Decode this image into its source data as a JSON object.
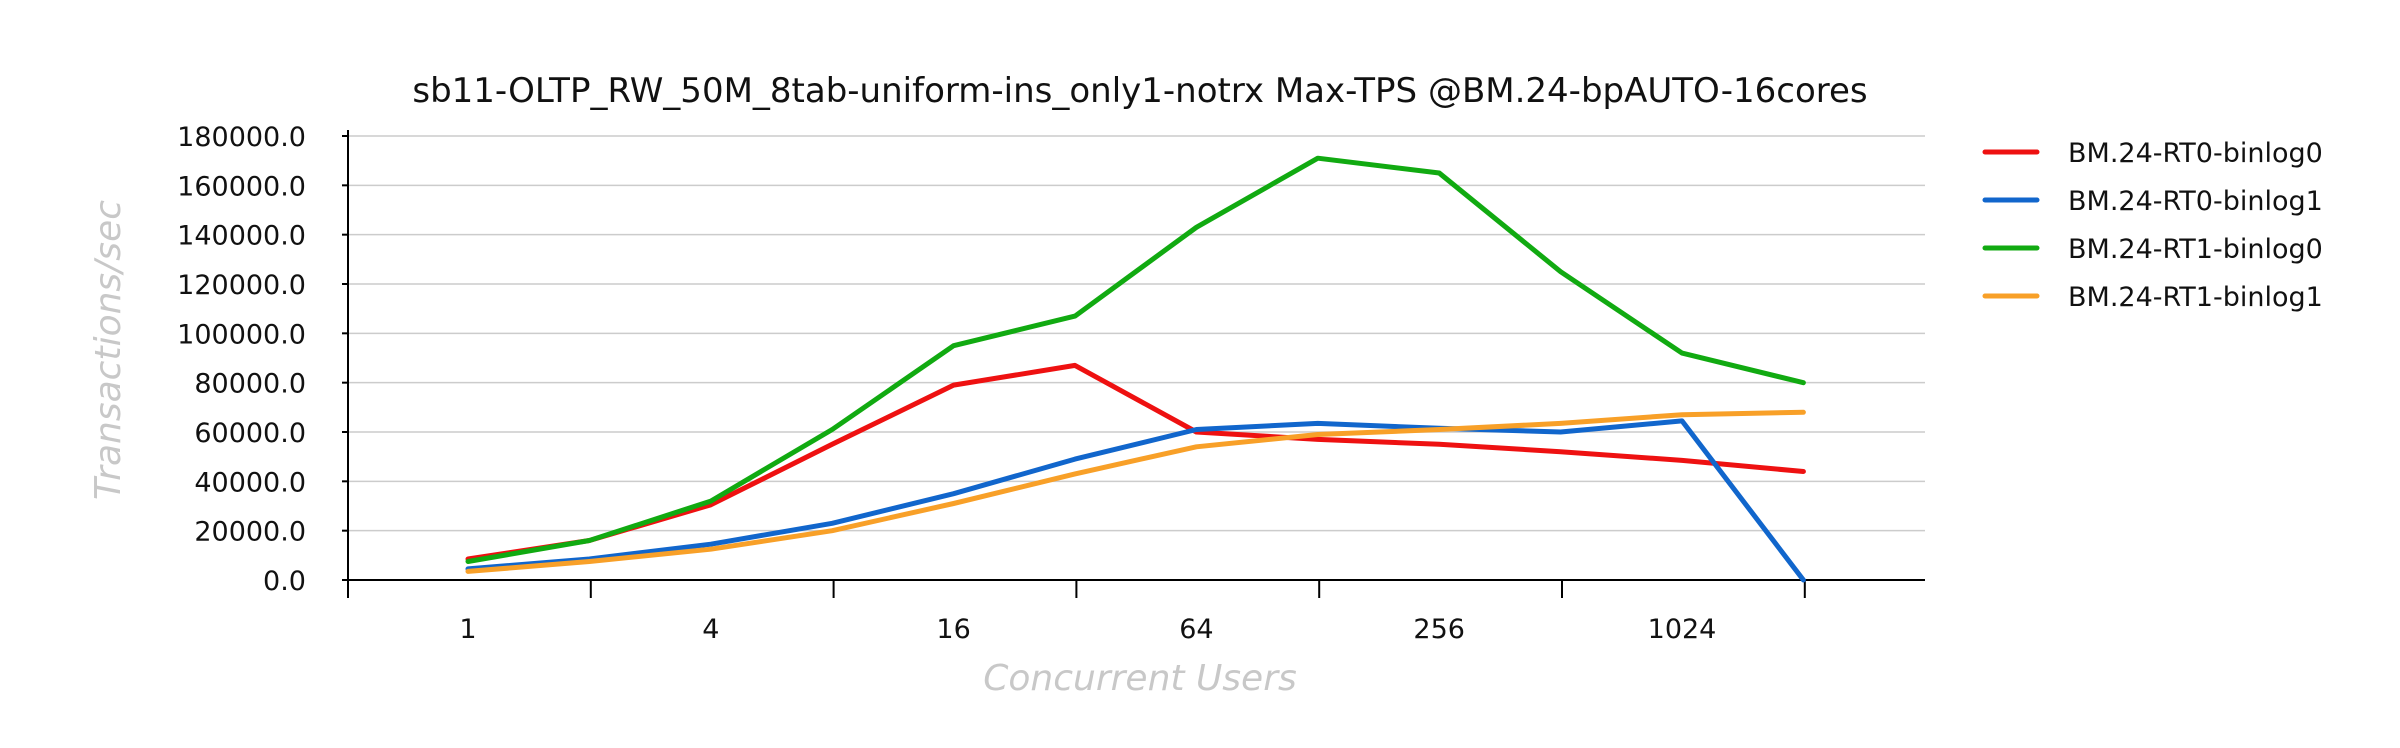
{
  "chart_data": {
    "type": "line",
    "title": "sb11-OLTP_RW_50M_8tab-uniform-ins_only1-notrx Max-TPS @BM.24-bpAUTO-16cores",
    "xlabel": "Concurrent Users",
    "ylabel": "Transactions/sec",
    "x": [
      1,
      2,
      4,
      8,
      16,
      32,
      64,
      128,
      256,
      512,
      1024,
      2048
    ],
    "x_scale": "log2",
    "xticks": [
      "1",
      "4",
      "16",
      "64",
      "256",
      "1024"
    ],
    "yticks": [
      "0.0",
      "20000.0",
      "40000.0",
      "60000.0",
      "80000.0",
      "100000.0",
      "120000.0",
      "140000.0",
      "160000.0",
      "180000.0"
    ],
    "ylim": [
      0,
      180000
    ],
    "grid": true,
    "legend_position": "right",
    "series": [
      {
        "name": "BM.24-RT0-binlog0",
        "color": "#ee1111",
        "values": [
          8500,
          16000,
          30500,
          55000,
          79000,
          87000,
          60000,
          57000,
          55000,
          52000,
          48500,
          44000
        ]
      },
      {
        "name": "BM.24-RT0-binlog1",
        "color": "#1166cc",
        "values": [
          4500,
          8500,
          14500,
          23000,
          35000,
          49000,
          61000,
          63500,
          61500,
          60000,
          64500,
          0
        ]
      },
      {
        "name": "BM.24-RT1-binlog0",
        "color": "#11aa11",
        "values": [
          7500,
          16000,
          32000,
          61000,
          95000,
          107000,
          143000,
          171000,
          165000,
          125000,
          92000,
          80000
        ]
      },
      {
        "name": "BM.24-RT1-binlog1",
        "color": "#f8a028",
        "values": [
          3500,
          7500,
          12500,
          20000,
          31000,
          43000,
          54000,
          59000,
          61000,
          63500,
          67000,
          68000
        ]
      }
    ]
  }
}
